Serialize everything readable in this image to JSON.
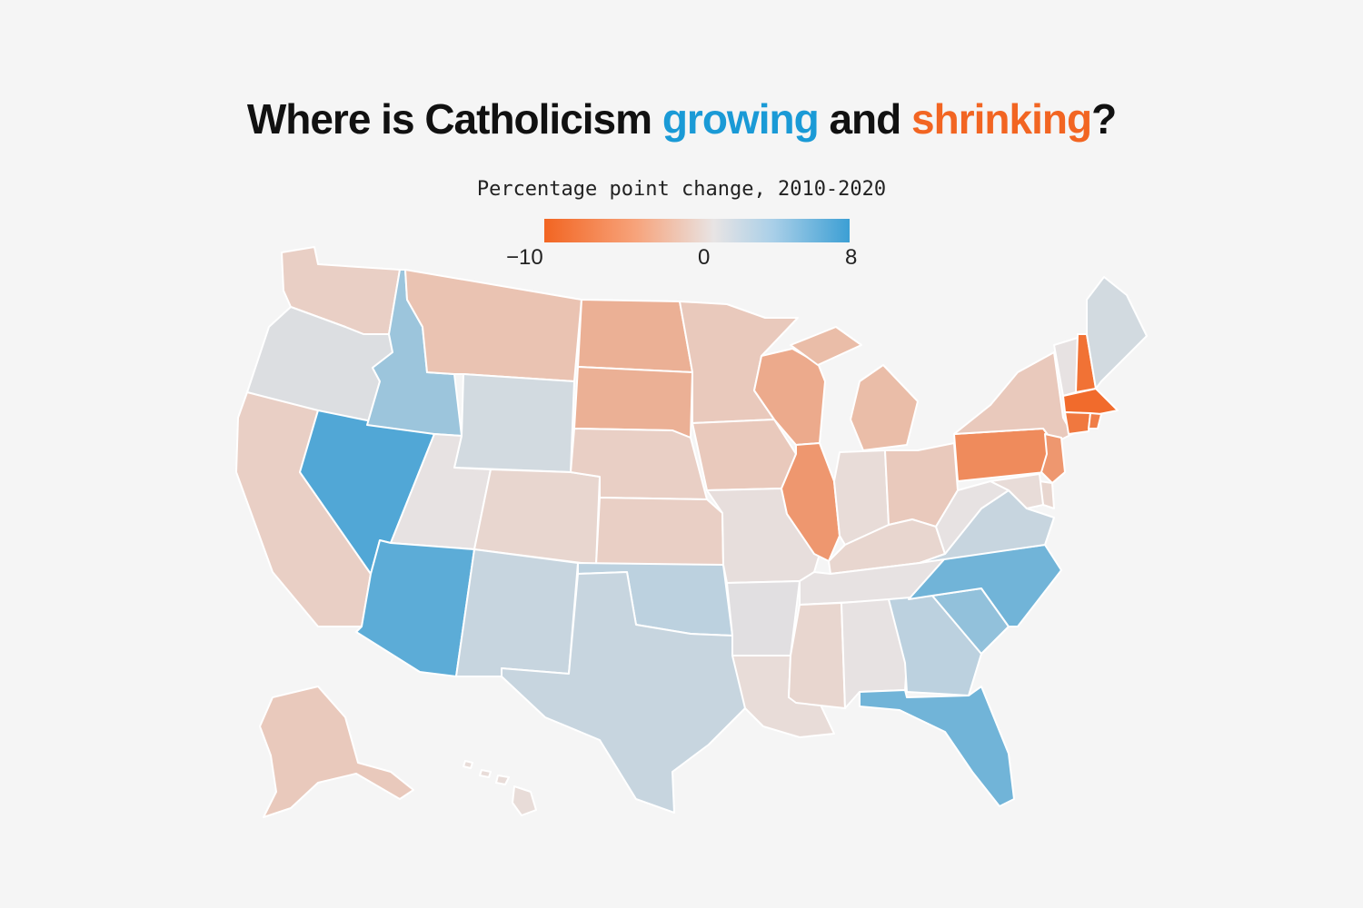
{
  "title": {
    "part1": "Where is Catholicism ",
    "growing": "growing",
    "part2": " and ",
    "shrinking": "shrinking",
    "part3": "?"
  },
  "colors": {
    "growing": "#1a9ad6",
    "shrinking": "#f26522",
    "scale_min": "#f26522",
    "scale_mid": "#e7e2e2",
    "scale_max": "#3c9fd4"
  },
  "legend": {
    "caption": "Percentage point change, 2010-2020",
    "min_label": "−10",
    "mid_label": "0",
    "max_label": "8",
    "min": -10,
    "max": 8
  },
  "chart_data": {
    "type": "choropleth",
    "metric": "Percentage point change, 2010-2020",
    "range": [
      -10,
      8
    ],
    "values": {
      "WA": -1.5,
      "OR": 0.5,
      "CA": -1.5,
      "NV": 7.0,
      "ID": 3.5,
      "MT": -2.5,
      "WY": 1.0,
      "UT": 0.0,
      "AZ": 6.5,
      "CO": -1.0,
      "NM": 1.5,
      "ND": -4.0,
      "SD": -4.0,
      "NE": -1.5,
      "KS": -1.5,
      "OK": 2.0,
      "TX": 1.5,
      "MN": -2.0,
      "IA": -2.0,
      "MO": -0.3,
      "AR": 0.3,
      "LA": -0.5,
      "WI": -4.5,
      "IL": -6.0,
      "MI": -3.0,
      "IN": -0.5,
      "OH": -2.0,
      "KY": -1.0,
      "TN": 0.0,
      "MS": -1.0,
      "AL": 0.0,
      "GA": 2.0,
      "FL": 5.5,
      "SC": 4.0,
      "NC": 5.5,
      "VA": 1.5,
      "WV": 0.0,
      "PA": -7.0,
      "NY": -2.0,
      "NJ": -6.0,
      "DE": -1.0,
      "MD": -0.5,
      "VT": 0.0,
      "NH": -9.0,
      "ME": 1.0,
      "MA": -9.5,
      "CT": -8.5,
      "RI": -8.0,
      "AK": -2.0,
      "HI": -0.5
    }
  }
}
